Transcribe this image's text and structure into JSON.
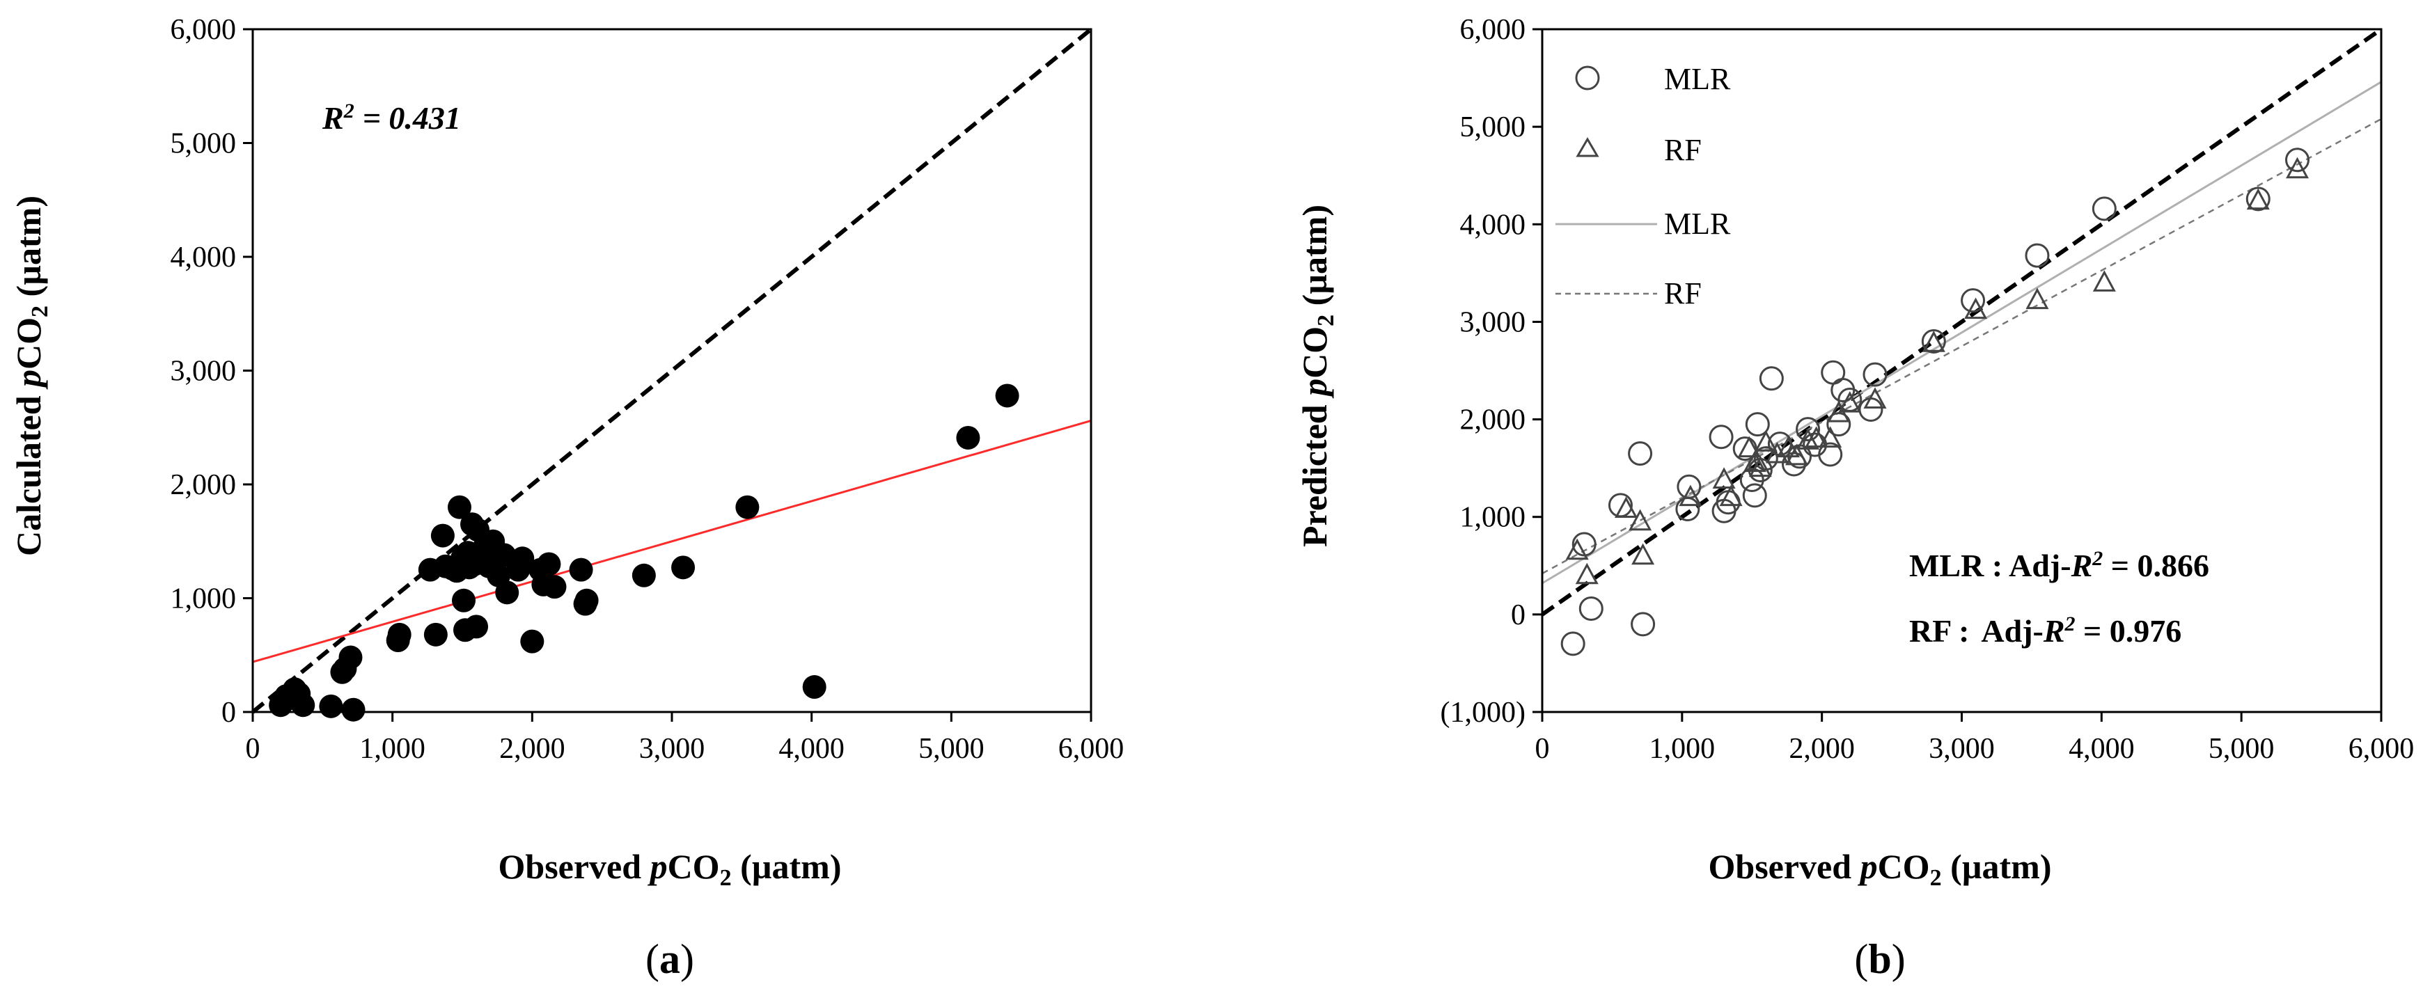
{
  "chart_data": [
    {
      "id": "a",
      "type": "scatter",
      "panel_label": "a",
      "xlabel": "Observed pCO2 (µatm)",
      "ylabel": "Calculated pCO2 (µatm)",
      "xlim": [
        0,
        6000
      ],
      "ylim": [
        0,
        6000
      ],
      "x_ticks": [
        "0",
        "1,000",
        "2,000",
        "3,000",
        "4,000",
        "5,000",
        "6,000"
      ],
      "y_ticks": [
        "0",
        "1,000",
        "2,000",
        "3,000",
        "4,000",
        "5,000",
        "6,000"
      ],
      "grid": false,
      "annotation": {
        "label": "R",
        "sup": "2",
        "value": "= 0.431"
      },
      "lines": [
        {
          "name": "1:1",
          "style": "dashed",
          "color": "#000000",
          "x": [
            0,
            6000
          ],
          "y": [
            0,
            6000
          ]
        },
        {
          "name": "fit",
          "style": "solid",
          "color": "#ff2a2a",
          "x": [
            0,
            6000
          ],
          "y": [
            440,
            2560
          ]
        }
      ],
      "series": [
        {
          "name": "Observed vs Calculated",
          "marker": "filled-circle",
          "color": "#000000",
          "x": [
            200,
            240,
            260,
            300,
            330,
            360,
            560,
            640,
            660,
            700,
            720,
            1040,
            1050,
            1270,
            1310,
            1360,
            1380,
            1430,
            1460,
            1480,
            1500,
            1510,
            1520,
            1540,
            1550,
            1570,
            1590,
            1600,
            1610,
            1640,
            1660,
            1690,
            1720,
            1760,
            1800,
            1820,
            1900,
            1930,
            2000,
            2060,
            2080,
            2120,
            2160,
            2350,
            2380,
            2390,
            2800,
            3080,
            3540,
            4020,
            5120,
            5400
          ],
          "y": [
            60,
            140,
            120,
            200,
            160,
            60,
            50,
            350,
            380,
            480,
            20,
            630,
            680,
            1250,
            680,
            1550,
            1280,
            1260,
            1240,
            1800,
            1350,
            980,
            720,
            1400,
            1270,
            1650,
            1300,
            750,
            1600,
            1350,
            1450,
            1280,
            1500,
            1200,
            1380,
            1050,
            1250,
            1350,
            620,
            1250,
            1120,
            1300,
            1100,
            1250,
            950,
            980,
            1200,
            1270,
            1800,
            220,
            2410,
            2780
          ]
        }
      ]
    },
    {
      "id": "b",
      "type": "scatter",
      "panel_label": "b",
      "xlabel": "Observed pCO2 (µatm)",
      "ylabel": "Predicted pCO2 (µatm)",
      "xlim": [
        0,
        6000
      ],
      "ylim": [
        -1000,
        6000
      ],
      "x_ticks": [
        "0",
        "1,000",
        "2,000",
        "3,000",
        "4,000",
        "5,000",
        "6,000"
      ],
      "y_ticks": [
        "(1,000)",
        "0",
        "1,000",
        "2,000",
        "3,000",
        "4,000",
        "5,000",
        "6,000"
      ],
      "negative_tick_color": "#e8202a",
      "grid": false,
      "legend": {
        "placement": "top-left",
        "entries": [
          "MLR",
          "RF",
          "MLR",
          "RF"
        ]
      },
      "annotations": [
        {
          "model": "MLR :",
          "metric": "Adj-",
          "label": "R",
          "sup": "2",
          "value": "= 0.866"
        },
        {
          "model": "RF :",
          "metric": "Adj-",
          "label": "R",
          "sup": "2",
          "value": "= 0.976"
        }
      ],
      "lines": [
        {
          "name": "1:1",
          "style": "dashed",
          "color": "#000000",
          "x": [
            0,
            6000
          ],
          "y": [
            0,
            6000
          ]
        },
        {
          "name": "MLR",
          "style": "solid",
          "color": "#b0b0b0",
          "x": [
            0,
            6000
          ],
          "y": [
            320,
            5460
          ]
        },
        {
          "name": "RF",
          "style": "dashed-thin",
          "color": "#777777",
          "x": [
            0,
            6000
          ],
          "y": [
            420,
            5080
          ]
        }
      ],
      "series": [
        {
          "name": "MLR",
          "marker": "open-circle",
          "x": [
            220,
            300,
            350,
            560,
            700,
            720,
            1040,
            1050,
            1280,
            1300,
            1330,
            1450,
            1500,
            1520,
            1540,
            1560,
            1600,
            1640,
            1700,
            1800,
            1840,
            1900,
            1950,
            2060,
            2080,
            2120,
            2150,
            2200,
            2350,
            2380,
            2800,
            3080,
            3540,
            4020,
            5120,
            5400
          ],
          "y": [
            -300,
            720,
            60,
            1120,
            1650,
            -100,
            1080,
            1310,
            1820,
            1060,
            1150,
            1700,
            1380,
            1220,
            1950,
            1480,
            1600,
            2420,
            1750,
            1540,
            1620,
            1900,
            1740,
            1640,
            2480,
            1950,
            2300,
            2200,
            2100,
            2460,
            2800,
            3220,
            3680,
            4160,
            4260,
            4660
          ]
        },
        {
          "name": "RF",
          "marker": "open-triangle",
          "x": [
            250,
            320,
            600,
            700,
            720,
            1060,
            1300,
            1350,
            1480,
            1520,
            1560,
            1600,
            1680,
            1760,
            1820,
            1900,
            1960,
            2060,
            2120,
            2200,
            2380,
            2800,
            3100,
            3540,
            4020,
            5120,
            5400
          ],
          "y": [
            650,
            400,
            1080,
            950,
            600,
            1200,
            1380,
            1200,
            1700,
            1550,
            1500,
            1760,
            1640,
            1700,
            1620,
            1780,
            1800,
            1800,
            2060,
            2160,
            2200,
            2780,
            3120,
            3220,
            3400,
            4240,
            4560
          ]
        }
      ]
    }
  ]
}
